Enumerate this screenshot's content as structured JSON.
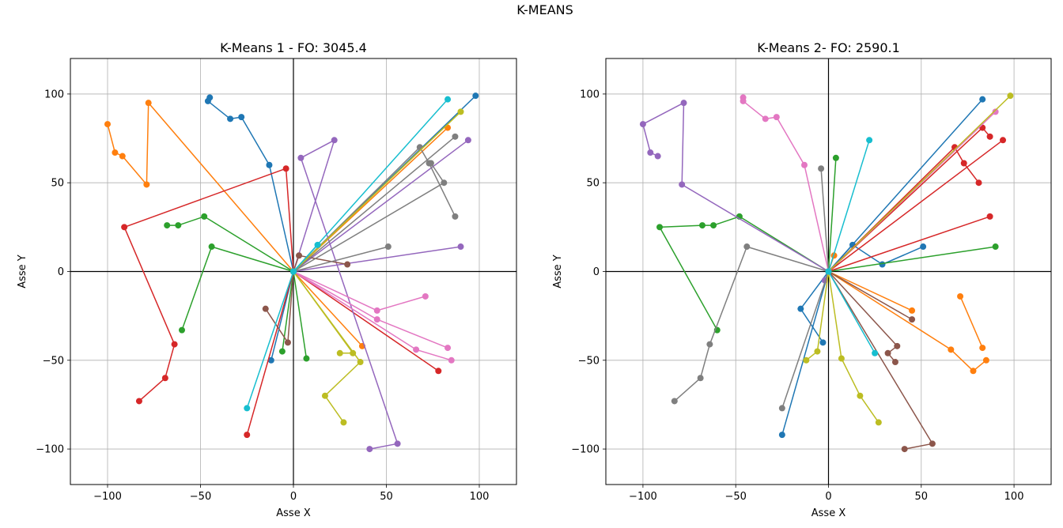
{
  "figure": {
    "suptitle": "K-MEANS"
  },
  "chart_data": [
    {
      "type": "line",
      "title": "K-Means 1 - FO: 3045.4",
      "xlabel": "Asse X",
      "ylabel": "Asse Y",
      "xlim": [
        -120,
        120
      ],
      "ylim": [
        -120,
        120
      ],
      "xticks": [
        -100,
        -50,
        0,
        50,
        100
      ],
      "yticks": [
        -100,
        -50,
        0,
        50,
        100
      ],
      "grid": true,
      "series": [
        {
          "color": "#1f77b4",
          "points": [
            [
              0,
              0
            ],
            [
              -13,
              60
            ],
            [
              -28,
              87
            ],
            [
              -34,
              86
            ],
            [
              -46,
              96
            ],
            [
              -45,
              98
            ]
          ]
        },
        {
          "color": "#1f77b4",
          "points": [
            [
              0,
              0
            ],
            [
              98,
              99
            ]
          ]
        },
        {
          "color": "#1f77b4",
          "points": [
            [
              0,
              0
            ],
            [
              -12,
              -50
            ]
          ]
        },
        {
          "color": "#ff7f0e",
          "points": [
            [
              0,
              0
            ],
            [
              -78,
              95
            ],
            [
              -79,
              49
            ],
            [
              -92,
              65
            ],
            [
              -96,
              67
            ],
            [
              -100,
              83
            ]
          ]
        },
        {
          "color": "#ff7f0e",
          "points": [
            [
              0,
              0
            ],
            [
              83,
              81
            ]
          ]
        },
        {
          "color": "#ff7f0e",
          "points": [
            [
              0,
              0
            ],
            [
              37,
              -42
            ]
          ]
        },
        {
          "color": "#2ca02c",
          "points": [
            [
              0,
              0
            ],
            [
              -44,
              14
            ],
            [
              -60,
              -33
            ]
          ]
        },
        {
          "color": "#2ca02c",
          "points": [
            [
              0,
              0
            ],
            [
              -48,
              31
            ],
            [
              -62,
              26
            ],
            [
              -68,
              26
            ]
          ]
        },
        {
          "color": "#2ca02c",
          "points": [
            [
              0,
              0
            ],
            [
              -6,
              -45
            ]
          ]
        },
        {
          "color": "#2ca02c",
          "points": [
            [
              0,
              0
            ],
            [
              7,
              -49
            ]
          ]
        },
        {
          "color": "#d62728",
          "points": [
            [
              0,
              0
            ],
            [
              -4,
              58
            ],
            [
              -91,
              25
            ],
            [
              -64,
              -41
            ],
            [
              -69,
              -60
            ],
            [
              -83,
              -73
            ]
          ]
        },
        {
          "color": "#d62728",
          "points": [
            [
              0,
              0
            ],
            [
              -25,
              -92
            ]
          ]
        },
        {
          "color": "#d62728",
          "points": [
            [
              0,
              0
            ],
            [
              78,
              -56
            ]
          ]
        },
        {
          "color": "#9467bd",
          "points": [
            [
              0,
              0
            ],
            [
              22,
              74
            ],
            [
              4,
              64
            ],
            [
              56,
              -97
            ],
            [
              41,
              -100
            ]
          ]
        },
        {
          "color": "#9467bd",
          "points": [
            [
              0,
              0
            ],
            [
              94,
              74
            ]
          ]
        },
        {
          "color": "#9467bd",
          "points": [
            [
              0,
              0
            ],
            [
              90,
              14
            ]
          ]
        },
        {
          "color": "#8c564b",
          "points": [
            [
              0,
              0
            ],
            [
              -3,
              -40
            ],
            [
              -15,
              -21
            ]
          ]
        },
        {
          "color": "#8c564b",
          "points": [
            [
              0,
              0
            ],
            [
              3,
              9
            ],
            [
              29,
              4
            ]
          ]
        },
        {
          "color": "#e377c2",
          "points": [
            [
              0,
              0
            ],
            [
              45,
              -22
            ],
            [
              71,
              -14
            ]
          ]
        },
        {
          "color": "#e377c2",
          "points": [
            [
              0,
              0
            ],
            [
              45,
              -27
            ],
            [
              83,
              -43
            ]
          ]
        },
        {
          "color": "#e377c2",
          "points": [
            [
              0,
              0
            ],
            [
              66,
              -44
            ],
            [
              85,
              -50
            ]
          ]
        },
        {
          "color": "#7f7f7f",
          "points": [
            [
              0,
              0
            ],
            [
              68,
              70
            ],
            [
              73,
              61
            ],
            [
              87,
              31
            ]
          ]
        },
        {
          "color": "#7f7f7f",
          "points": [
            [
              0,
              0
            ],
            [
              87,
              76
            ]
          ]
        },
        {
          "color": "#7f7f7f",
          "points": [
            [
              0,
              0
            ],
            [
              81,
              50
            ],
            [
              74,
              61
            ]
          ]
        },
        {
          "color": "#7f7f7f",
          "points": [
            [
              0,
              0
            ],
            [
              51,
              14
            ]
          ]
        },
        {
          "color": "#bcbd22",
          "points": [
            [
              0,
              0
            ],
            [
              90,
              90
            ]
          ]
        },
        {
          "color": "#bcbd22",
          "points": [
            [
              0,
              0
            ],
            [
              36,
              -51
            ],
            [
              17,
              -70
            ],
            [
              27,
              -85
            ]
          ]
        },
        {
          "color": "#bcbd22",
          "points": [
            [
              0,
              0
            ],
            [
              32,
              -46
            ],
            [
              25,
              -46
            ]
          ]
        },
        {
          "color": "#17becf",
          "points": [
            [
              0,
              0
            ],
            [
              83,
              97
            ]
          ]
        },
        {
          "color": "#17becf",
          "points": [
            [
              0,
              0
            ],
            [
              13,
              15
            ]
          ]
        },
        {
          "color": "#17becf",
          "points": [
            [
              0,
              0
            ],
            [
              -25,
              -77
            ]
          ]
        }
      ]
    },
    {
      "type": "line",
      "title": "K-Means 2- FO: 2590.1",
      "xlabel": "Asse X",
      "ylabel": "Asse Y",
      "xlim": [
        -120,
        120
      ],
      "ylim": [
        -120,
        120
      ],
      "xticks": [
        -100,
        -50,
        0,
        50,
        100
      ],
      "yticks": [
        -100,
        -50,
        0,
        50,
        100
      ],
      "grid": true,
      "series": [
        {
          "color": "#1f77b4",
          "points": [
            [
              0,
              0
            ],
            [
              83,
              97
            ]
          ]
        },
        {
          "color": "#1f77b4",
          "points": [
            [
              0,
              0
            ],
            [
              13,
              15
            ],
            [
              29,
              4
            ],
            [
              51,
              14
            ]
          ]
        },
        {
          "color": "#1f77b4",
          "points": [
            [
              0,
              0
            ],
            [
              -15,
              -21
            ],
            [
              -3,
              -40
            ]
          ]
        },
        {
          "color": "#1f77b4",
          "points": [
            [
              0,
              0
            ],
            [
              -25,
              -92
            ]
          ]
        },
        {
          "color": "#ff7f0e",
          "points": [
            [
              0,
              0
            ],
            [
              3,
              9
            ]
          ]
        },
        {
          "color": "#ff7f0e",
          "points": [
            [
              0,
              0
            ],
            [
              45,
              -22
            ]
          ]
        },
        {
          "color": "#ff7f0e",
          "points": [
            [
              0,
              0
            ],
            [
              66,
              -44
            ],
            [
              78,
              -56
            ],
            [
              85,
              -50
            ]
          ]
        },
        {
          "color": "#ff7f0e",
          "points": [
            [
              71,
              -14
            ],
            [
              83,
              -43
            ]
          ]
        },
        {
          "color": "#2ca02c",
          "points": [
            [
              0,
              0
            ],
            [
              4,
              64
            ]
          ]
        },
        {
          "color": "#2ca02c",
          "points": [
            [
              0,
              0
            ],
            [
              90,
              14
            ]
          ]
        },
        {
          "color": "#2ca02c",
          "points": [
            [
              0,
              0
            ],
            [
              -48,
              31
            ],
            [
              -62,
              26
            ],
            [
              -68,
              26
            ],
            [
              -91,
              25
            ],
            [
              -60,
              -33
            ]
          ]
        },
        {
          "color": "#d62728",
          "points": [
            [
              0,
              0
            ],
            [
              68,
              70
            ],
            [
              73,
              61
            ],
            [
              81,
              50
            ]
          ]
        },
        {
          "color": "#d62728",
          "points": [
            [
              0,
              0
            ],
            [
              83,
              81
            ],
            [
              87,
              76
            ]
          ]
        },
        {
          "color": "#d62728",
          "points": [
            [
              0,
              0
            ],
            [
              94,
              74
            ]
          ]
        },
        {
          "color": "#d62728",
          "points": [
            [
              0,
              0
            ],
            [
              87,
              31
            ]
          ]
        },
        {
          "color": "#9467bd",
          "points": [
            [
              0,
              0
            ],
            [
              -79,
              49
            ],
            [
              -78,
              95
            ],
            [
              -100,
              83
            ],
            [
              -96,
              67
            ],
            [
              -92,
              65
            ]
          ]
        },
        {
          "color": "#9467bd",
          "points": [
            [
              0,
              0
            ],
            [
              -2,
              -5
            ]
          ]
        },
        {
          "color": "#8c564b",
          "points": [
            [
              0,
              0
            ],
            [
              45,
              -27
            ]
          ]
        },
        {
          "color": "#8c564b",
          "points": [
            [
              0,
              0
            ],
            [
              37,
              -42
            ],
            [
              32,
              -46
            ],
            [
              36,
              -51
            ]
          ]
        },
        {
          "color": "#8c564b",
          "points": [
            [
              0,
              0
            ],
            [
              56,
              -97
            ],
            [
              41,
              -100
            ]
          ]
        },
        {
          "color": "#e377c2",
          "points": [
            [
              0,
              0
            ],
            [
              -13,
              60
            ],
            [
              -28,
              87
            ],
            [
              -34,
              86
            ],
            [
              -46,
              96
            ],
            [
              -46,
              98
            ]
          ]
        },
        {
          "color": "#e377c2",
          "points": [
            [
              0,
              0
            ],
            [
              90,
              90
            ]
          ]
        },
        {
          "color": "#7f7f7f",
          "points": [
            [
              0,
              0
            ],
            [
              -4,
              58
            ]
          ]
        },
        {
          "color": "#7f7f7f",
          "points": [
            [
              0,
              0
            ],
            [
              -44,
              14
            ],
            [
              -64,
              -41
            ],
            [
              -69,
              -60
            ],
            [
              -83,
              -73
            ]
          ]
        },
        {
          "color": "#7f7f7f",
          "points": [
            [
              0,
              0
            ],
            [
              -25,
              -77
            ]
          ]
        },
        {
          "color": "#bcbd22",
          "points": [
            [
              0,
              0
            ],
            [
              98,
              99
            ]
          ]
        },
        {
          "color": "#bcbd22",
          "points": [
            [
              0,
              0
            ],
            [
              -6,
              -45
            ],
            [
              -12,
              -50
            ]
          ]
        },
        {
          "color": "#bcbd22",
          "points": [
            [
              0,
              0
            ],
            [
              7,
              -49
            ],
            [
              17,
              -70
            ],
            [
              27,
              -85
            ]
          ]
        },
        {
          "color": "#17becf",
          "points": [
            [
              0,
              0
            ],
            [
              22,
              74
            ]
          ]
        },
        {
          "color": "#17becf",
          "points": [
            [
              0,
              0
            ],
            [
              25,
              -46
            ]
          ]
        }
      ]
    }
  ]
}
